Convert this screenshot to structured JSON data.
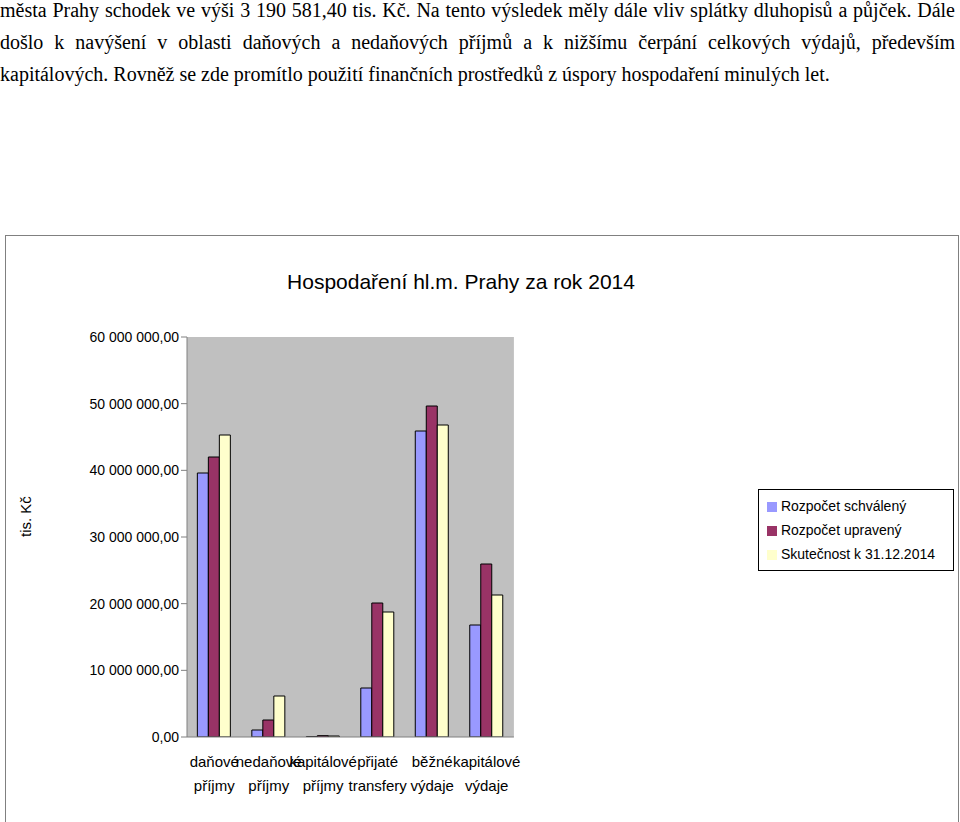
{
  "document": {
    "paragraph": "města Prahy schodek ve výši 3 190 581,40 tis. Kč. Na tento výsledek měly dále vliv splátky dluhopisů a půjček. Dále došlo k navýšení v oblasti daňových a nedaňových příjmů a k nižšímu čerpání celkových výdajů, především kapitálových. Rovněž se zde promítlo použití finančních prostředků z úspory hospodaření minulých let."
  },
  "chart_data": {
    "type": "bar",
    "title": "Hospodaření hl.m. Prahy za rok 2014",
    "y_label": "tis. Kč",
    "categories": [
      "daňové příjmy",
      "nedaňové příjmy",
      "kapitálové příjmy",
      "přijaté transfery",
      "běžné výdaje",
      "kapitálové výdaje"
    ],
    "series": [
      {
        "name": "Rozpočet schválený",
        "color": "#9999ff",
        "values": [
          39600000,
          1050000,
          50000,
          7350000,
          45900000,
          16800000
        ]
      },
      {
        "name": "Rozpočet upravený",
        "color": "#993366",
        "values": [
          42000000,
          2550000,
          200000,
          20100000,
          49650000,
          25950000
        ]
      },
      {
        "name": "Skutečnost k 31.12.2014",
        "color": "#ffffcc",
        "values": [
          45300000,
          6150000,
          150000,
          18750000,
          46800000,
          21300000
        ]
      }
    ],
    "ylim": [
      0,
      60000000
    ],
    "yticks": [
      {
        "value": 0,
        "label": "0,00"
      },
      {
        "value": 10000000,
        "label": "10 000 000,00"
      },
      {
        "value": 20000000,
        "label": "20 000 000,00"
      },
      {
        "value": 30000000,
        "label": "30 000 000,00"
      },
      {
        "value": 40000000,
        "label": "40 000 000,00"
      },
      {
        "value": 50000000,
        "label": "50 000 000,00"
      },
      {
        "value": 60000000,
        "label": "60 000 000,00"
      }
    ],
    "grid": false,
    "legend": "right"
  }
}
